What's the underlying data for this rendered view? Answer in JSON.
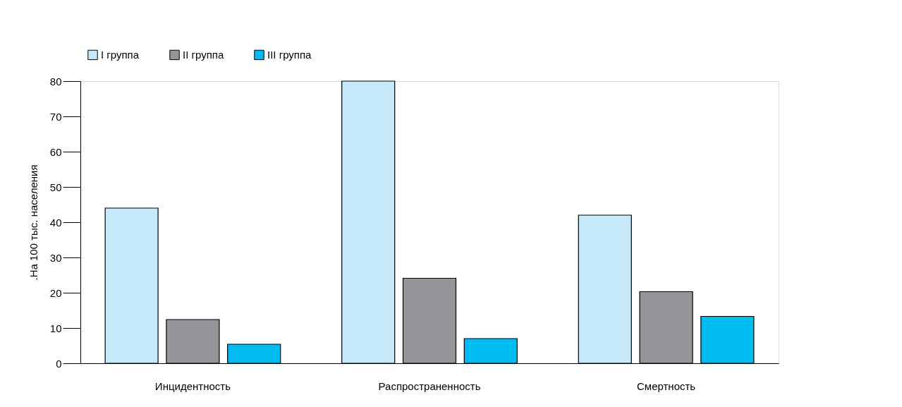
{
  "chart_data": {
    "type": "bar",
    "ylabel": ".На 100 тыс. населения",
    "categories": [
      "Инцидентность",
      "Распространенность",
      "Смертность"
    ],
    "series": [
      {
        "name": "I группа",
        "color": "#c6e9f9",
        "values": [
          44,
          80,
          42
        ]
      },
      {
        "name": "II группа",
        "color": "#939598",
        "values": [
          12.4,
          24.1,
          20.3
        ]
      },
      {
        "name": "III группа",
        "color": "#00bbf0",
        "values": [
          5.4,
          7.0,
          13.3
        ]
      }
    ],
    "ylim": [
      0,
      80
    ],
    "yticks": [
      0,
      10,
      20,
      30,
      40,
      50,
      60,
      70,
      80
    ],
    "grid": false,
    "legend": "top left"
  }
}
